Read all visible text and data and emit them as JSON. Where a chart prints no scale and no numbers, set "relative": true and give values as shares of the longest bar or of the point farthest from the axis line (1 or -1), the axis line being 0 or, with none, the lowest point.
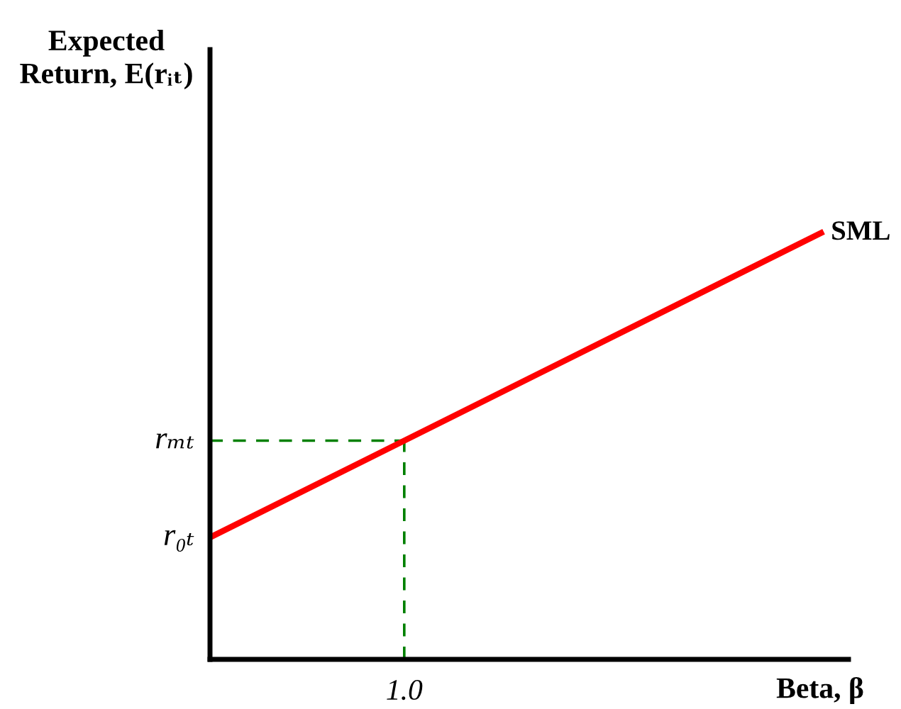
{
  "chart_data": {
    "type": "line",
    "relative": true,
    "ylabel": "Expected\nReturn, E(rᵢₜ)",
    "xlabel": "Beta, β",
    "categories": [
      null,
      null
    ],
    "series": [
      {
        "name": "SML",
        "color": "#ff0000",
        "values": [
          0.286,
          1.0
        ]
      }
    ],
    "ref_lines": [
      {
        "axis": "y",
        "value": 0.513,
        "label": "rₘₜ",
        "color": "#008000",
        "line_style": "dashed"
      }
    ],
    "annotations": [
      "r₀ₜ",
      "1.0"
    ],
    "legend": false,
    "marker": "none",
    "line_style": "solid"
  }
}
